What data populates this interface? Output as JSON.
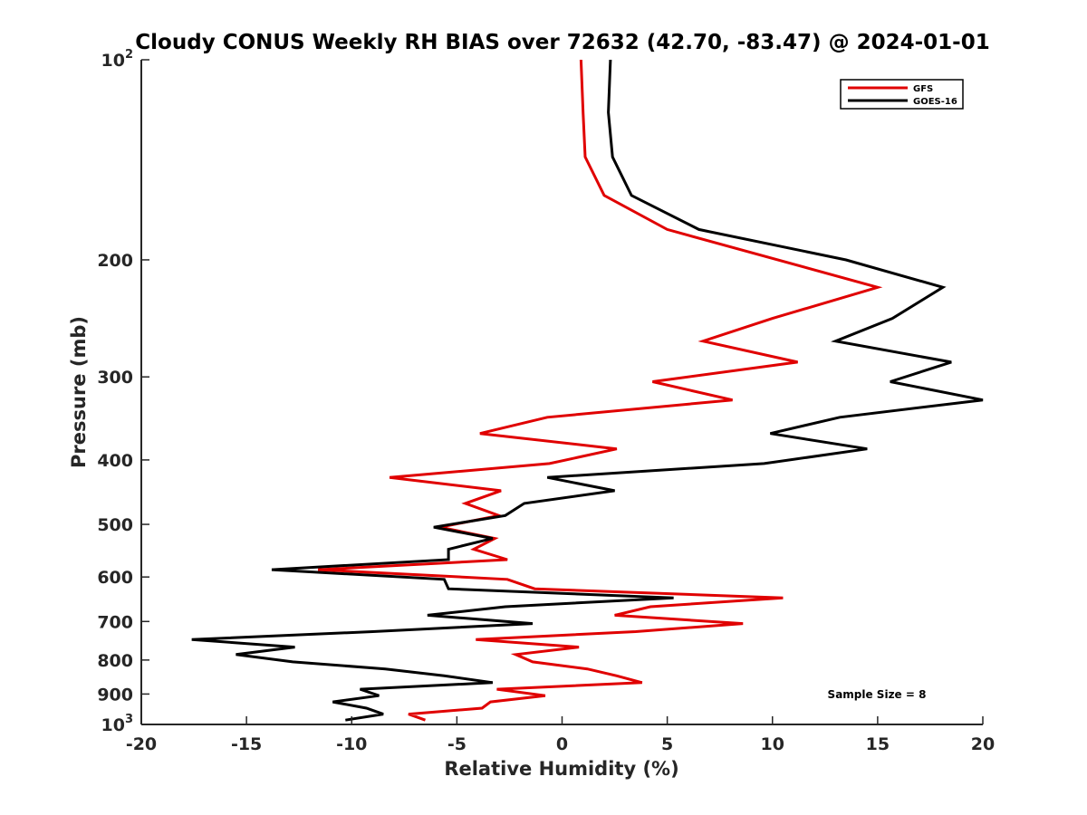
{
  "chart_data": {
    "type": "line",
    "title": "Cloudy CONUS Weekly RH BIAS over 72632 (42.70, -83.47) @ 2024-01-01",
    "xlabel": "Relative Humidity (%)",
    "ylabel": "Pressure (mb)",
    "xlim": [
      -20,
      20
    ],
    "ylim": [
      100,
      1000
    ],
    "y_scale": "log",
    "y_reversed": true,
    "x_ticks": [
      "-20",
      "-15",
      "-10",
      "-5",
      "0",
      "5",
      "10",
      "15",
      "20"
    ],
    "y_ticks": [
      {
        "value": 100,
        "base": "10",
        "exp": "2"
      },
      {
        "value": 200,
        "label": "200"
      },
      {
        "value": 300,
        "label": "300"
      },
      {
        "value": 400,
        "label": "400"
      },
      {
        "value": 500,
        "label": "500"
      },
      {
        "value": 600,
        "label": "600"
      },
      {
        "value": 700,
        "label": "700"
      },
      {
        "value": 800,
        "label": "800"
      },
      {
        "value": 900,
        "label": "900"
      },
      {
        "value": 1000,
        "base": "10",
        "exp": "3"
      }
    ],
    "legend_position": "top-right",
    "annotation": "Sample Size = 8",
    "series": [
      {
        "name": "GFS",
        "color": "#e00000",
        "points": [
          [
            0.9,
            100
          ],
          [
            1.0,
            120
          ],
          [
            1.1,
            140
          ],
          [
            2.0,
            160
          ],
          [
            5.0,
            180
          ],
          [
            15.0,
            220
          ],
          [
            10.0,
            245
          ],
          [
            6.7,
            265
          ],
          [
            11.2,
            285
          ],
          [
            4.3,
            305
          ],
          [
            8.1,
            325
          ],
          [
            -0.7,
            345
          ],
          [
            -3.9,
            365
          ],
          [
            2.6,
            385
          ],
          [
            -0.6,
            405
          ],
          [
            -8.2,
            425
          ],
          [
            -2.9,
            445
          ],
          [
            -4.6,
            465
          ],
          [
            -3.0,
            485
          ],
          [
            -5.8,
            505
          ],
          [
            -3.2,
            525
          ],
          [
            -4.2,
            545
          ],
          [
            -2.6,
            565
          ],
          [
            -11.6,
            585
          ],
          [
            -2.6,
            605
          ],
          [
            -1.3,
            625
          ],
          [
            10.5,
            645
          ],
          [
            4.2,
            665
          ],
          [
            2.5,
            685
          ],
          [
            8.6,
            705
          ],
          [
            3.5,
            725
          ],
          [
            -4.1,
            745
          ],
          [
            0.8,
            765
          ],
          [
            -2.2,
            785
          ],
          [
            -1.4,
            805
          ],
          [
            1.2,
            825
          ],
          [
            2.6,
            845
          ],
          [
            3.8,
            865
          ],
          [
            -3.1,
            885
          ],
          [
            -0.8,
            905
          ],
          [
            -3.4,
            925
          ],
          [
            -3.8,
            945
          ],
          [
            -7.3,
            965
          ],
          [
            -6.5,
            985
          ]
        ]
      },
      {
        "name": "GOES-16",
        "color": "#000000",
        "points": [
          [
            2.3,
            100
          ],
          [
            2.2,
            120
          ],
          [
            2.4,
            140
          ],
          [
            3.3,
            160
          ],
          [
            6.5,
            180
          ],
          [
            13.5,
            200
          ],
          [
            18.1,
            220
          ],
          [
            15.7,
            245
          ],
          [
            13.0,
            265
          ],
          [
            18.5,
            285
          ],
          [
            15.6,
            305
          ],
          [
            20.0,
            325
          ],
          [
            13.2,
            345
          ],
          [
            9.9,
            365
          ],
          [
            14.5,
            385
          ],
          [
            9.6,
            405
          ],
          [
            -0.7,
            425
          ],
          [
            2.5,
            445
          ],
          [
            -1.8,
            465
          ],
          [
            -2.7,
            485
          ],
          [
            -6.1,
            505
          ],
          [
            -3.3,
            525
          ],
          [
            -5.4,
            545
          ],
          [
            -5.4,
            565
          ],
          [
            -13.8,
            585
          ],
          [
            -5.6,
            605
          ],
          [
            -5.4,
            625
          ],
          [
            5.3,
            645
          ],
          [
            -2.7,
            665
          ],
          [
            -6.4,
            685
          ],
          [
            -1.4,
            705
          ],
          [
            -9.0,
            725
          ],
          [
            -17.6,
            745
          ],
          [
            -12.7,
            765
          ],
          [
            -15.5,
            785
          ],
          [
            -12.8,
            805
          ],
          [
            -8.4,
            825
          ],
          [
            -5.6,
            845
          ],
          [
            -3.3,
            865
          ],
          [
            -9.6,
            885
          ],
          [
            -8.7,
            905
          ],
          [
            -10.9,
            925
          ],
          [
            -9.3,
            945
          ],
          [
            -8.5,
            965
          ],
          [
            -10.3,
            985
          ]
        ]
      }
    ]
  }
}
